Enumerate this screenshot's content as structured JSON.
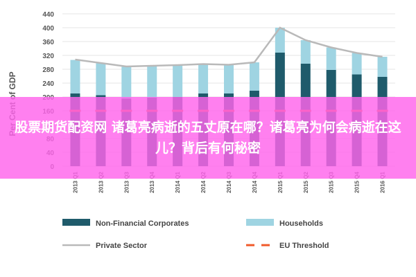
{
  "chart_data": {
    "type": "bar",
    "ylabel": "Per Cent of GDP",
    "ylim": [
      0,
      440
    ],
    "yticks": [
      0,
      40,
      80,
      120,
      160,
      200,
      240,
      280,
      320,
      360,
      400,
      440
    ],
    "categories": [
      "2013 Q1",
      "2013 Q2",
      "2013 Q3",
      "2013 Q4",
      "2014 Q1",
      "2014 Q2",
      "2014 Q3",
      "2014 Q4",
      "2015 Q1",
      "2015 Q2",
      "2015 Q3",
      "2015 Q4",
      "2016 Q1"
    ],
    "series": [
      {
        "name": "Non-Financial Corporates",
        "type": "bar",
        "stack": "debt",
        "color": "#1f5b6b",
        "values": [
          210,
          205,
          195,
          198,
          200,
          210,
          210,
          218,
          328,
          296,
          278,
          265,
          258
        ]
      },
      {
        "name": "Households",
        "type": "bar",
        "stack": "debt",
        "color": "#9fd4e2",
        "values": [
          97,
          92,
          92,
          92,
          92,
          85,
          83,
          82,
          72,
          68,
          65,
          62,
          58
        ]
      },
      {
        "name": "Private Sector",
        "type": "line",
        "color": "#b9b9b9",
        "values": [
          308,
          298,
          288,
          290,
          292,
          295,
          293,
          300,
          400,
          364,
          343,
          327,
          316
        ]
      },
      {
        "name": "EU Threshold",
        "type": "line",
        "dashed": true,
        "color": "#f05a2a",
        "values": [
          160,
          160,
          160,
          160,
          160,
          160,
          160,
          160,
          160,
          160,
          160,
          160,
          160
        ]
      }
    ],
    "grid": true,
    "legend_position": "bottom"
  },
  "overlay": {
    "text": "股票期货配资网 诸葛亮病逝的五丈原在哪？诸葛亮为何会病逝在这儿？背后有何秘密",
    "color": "#ff64eb"
  }
}
